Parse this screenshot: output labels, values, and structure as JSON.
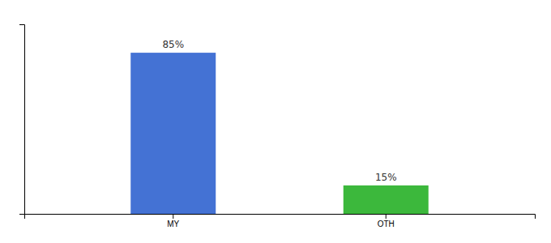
{
  "chart_data": {
    "type": "bar",
    "categories": [
      "MY",
      "OTH"
    ],
    "values": [
      85,
      15
    ],
    "value_labels": [
      "85%",
      "15%"
    ],
    "colors": [
      "#4472d4",
      "#3cb83c"
    ],
    "ylim": [
      0,
      100
    ],
    "data_labels": true,
    "tick_labels": "x"
  }
}
